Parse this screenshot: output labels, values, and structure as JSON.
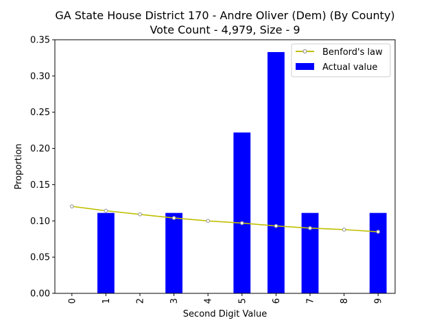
{
  "chart_data": {
    "type": "bar",
    "title_lines": [
      "GA State House District 170 - Andre Oliver (Dem) (By County)",
      "Vote Count - 4,979, Size - 9"
    ],
    "xlabel": "Second Digit Value",
    "ylabel": "Proportion",
    "categories": [
      "0",
      "1",
      "2",
      "3",
      "4",
      "5",
      "6",
      "7",
      "8",
      "9"
    ],
    "ylim": [
      0,
      0.35
    ],
    "yticks": [
      "0.00",
      "0.05",
      "0.10",
      "0.15",
      "0.20",
      "0.25",
      "0.30",
      "0.35"
    ],
    "grid": false,
    "legend_position": "top-right",
    "series": [
      {
        "name": "Benford's law",
        "kind": "line",
        "color": "#bfbf00",
        "marker_color": "#999999",
        "values": [
          0.12,
          0.114,
          0.109,
          0.104,
          0.1,
          0.097,
          0.093,
          0.09,
          0.088,
          0.085
        ]
      },
      {
        "name": "Actual value",
        "kind": "bar",
        "color": "#0000ff",
        "values": [
          0,
          0.111,
          0,
          0.111,
          0,
          0.222,
          0.333,
          0.111,
          0,
          0.111
        ]
      }
    ]
  }
}
